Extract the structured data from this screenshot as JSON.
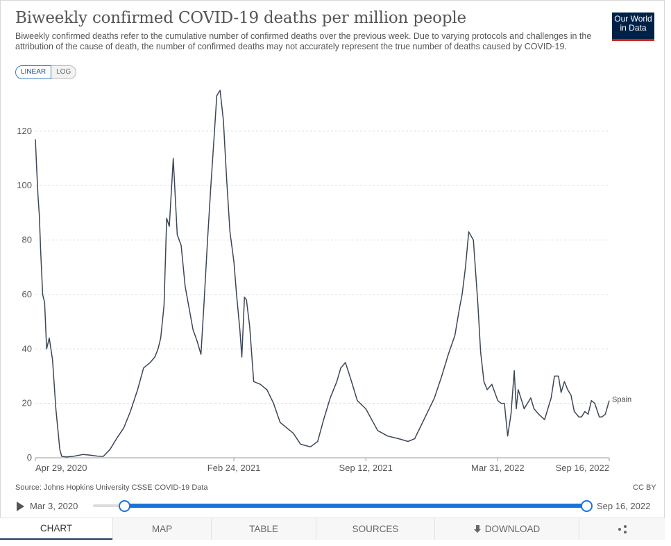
{
  "header": {
    "title": "Biweekly confirmed COVID-19 deaths per million people",
    "subtitle": "Biweekly confirmed deaths refer to the cumulative number of confirmed deaths over the previous week. Due to varying protocols and challenges in the attribution of the cause of death, the number of confirmed deaths may not accurately represent the true number of deaths caused by COVID-19.",
    "logo_line1": "Our World",
    "logo_line2": "in Data"
  },
  "scale_toggle": {
    "linear": "LINEAR",
    "log": "LOG",
    "selected": "LINEAR"
  },
  "chart_data": {
    "type": "line",
    "title": "Biweekly confirmed COVID-19 deaths per million people",
    "xlabel": "",
    "ylabel": "",
    "ylim": [
      0,
      135
    ],
    "yticks": [
      0,
      20,
      40,
      60,
      80,
      100,
      120
    ],
    "xtick_labels": [
      "Apr 29, 2020",
      "Feb 24, 2021",
      "Sep 12, 2021",
      "Mar 31, 2022",
      "Sep 16, 2022"
    ],
    "xtick_dates": [
      "2020-04-29",
      "2021-02-24",
      "2021-09-12",
      "2022-03-31",
      "2022-09-16"
    ],
    "grid": "horizontal dashed",
    "line_color": "#3c4656",
    "series": [
      {
        "name": "Spain",
        "x": [
          "2020-04-29",
          "2020-05-01",
          "2020-05-03",
          "2020-05-05",
          "2020-05-07",
          "2020-05-10",
          "2020-05-13",
          "2020-05-16",
          "2020-05-20",
          "2020-05-25",
          "2020-05-30",
          "2020-06-05",
          "2020-06-08",
          "2020-06-15",
          "2020-06-25",
          "2020-07-10",
          "2020-07-20",
          "2020-08-01",
          "2020-08-10",
          "2020-08-20",
          "2020-08-30",
          "2020-09-10",
          "2020-09-20",
          "2020-10-01",
          "2020-10-10",
          "2020-10-20",
          "2020-10-27",
          "2020-11-01",
          "2020-11-05",
          "2020-11-10",
          "2020-11-14",
          "2020-11-18",
          "2020-11-24",
          "2020-11-30",
          "2020-12-06",
          "2020-12-12",
          "2020-12-18",
          "2020-12-24",
          "2020-12-30",
          "2021-01-05",
          "2021-01-10",
          "2021-01-15",
          "2021-01-20",
          "2021-01-25",
          "2021-01-29",
          "2021-02-03",
          "2021-02-08",
          "2021-02-13",
          "2021-02-18",
          "2021-02-24",
          "2021-02-28",
          "2021-03-05",
          "2021-03-08",
          "2021-03-12",
          "2021-03-15",
          "2021-03-20",
          "2021-03-26",
          "2021-04-05",
          "2021-04-15",
          "2021-04-25",
          "2021-05-05",
          "2021-05-15",
          "2021-05-25",
          "2021-06-05",
          "2021-06-20",
          "2021-07-01",
          "2021-07-10",
          "2021-07-20",
          "2021-07-30",
          "2021-08-05",
          "2021-08-12",
          "2021-08-20",
          "2021-08-30",
          "2021-09-12",
          "2021-09-30",
          "2021-10-15",
          "2021-11-01",
          "2021-11-15",
          "2021-11-25",
          "2021-12-05",
          "2021-12-15",
          "2021-12-25",
          "2022-01-05",
          "2022-01-15",
          "2022-01-25",
          "2022-02-01",
          "2022-02-05",
          "2022-02-10",
          "2022-02-15",
          "2022-02-22",
          "2022-03-01",
          "2022-03-05",
          "2022-03-10",
          "2022-03-15",
          "2022-03-22",
          "2022-03-31",
          "2022-04-05",
          "2022-04-10",
          "2022-04-15",
          "2022-04-20",
          "2022-04-25",
          "2022-04-28",
          "2022-05-01",
          "2022-05-05",
          "2022-05-10",
          "2022-05-15",
          "2022-05-20",
          "2022-05-25",
          "2022-06-01",
          "2022-06-10",
          "2022-06-20",
          "2022-06-25",
          "2022-07-01",
          "2022-07-05",
          "2022-07-10",
          "2022-07-15",
          "2022-07-20",
          "2022-07-25",
          "2022-08-01",
          "2022-08-05",
          "2022-08-10",
          "2022-08-15",
          "2022-08-20",
          "2022-08-25",
          "2022-09-01",
          "2022-09-05",
          "2022-09-10",
          "2022-09-16"
        ],
        "values": [
          117,
          106,
          96,
          89,
          76,
          60,
          57,
          40,
          44,
          36,
          18,
          3,
          0.5,
          0.3,
          0.5,
          1.2,
          1,
          0.6,
          0.5,
          3,
          7,
          11,
          17,
          25,
          33,
          35,
          37,
          40,
          44,
          56,
          88,
          85,
          110,
          82,
          78,
          63,
          55,
          47,
          43,
          38,
          58,
          80,
          100,
          118,
          133,
          135,
          124,
          102,
          83,
          72,
          60,
          47,
          37,
          59,
          58,
          48,
          28,
          27,
          25,
          20,
          13,
          11,
          9,
          5,
          4,
          6,
          14,
          22,
          28,
          33,
          35,
          29,
          21,
          18,
          10,
          8,
          7,
          6,
          7,
          12,
          17,
          22,
          30,
          38,
          45,
          55,
          60,
          70,
          83,
          80,
          56,
          39,
          28,
          25,
          27,
          21,
          20,
          20,
          8,
          16,
          32,
          18,
          25,
          22,
          18,
          20,
          22,
          18,
          16,
          14,
          22,
          30,
          30,
          24,
          28,
          25,
          23,
          17,
          15,
          15,
          17,
          16,
          21,
          20,
          15,
          15,
          16,
          21
        ],
        "end_label": "Spain"
      }
    ]
  },
  "footer": {
    "source": "Source: Johns Hopkins University CSSE COVID-19 Data",
    "license": "CC BY"
  },
  "timeline": {
    "start_label": "Mar 3, 2020",
    "end_label": "Sep 16, 2022",
    "selected_start": "2020-04-29",
    "selected_end": "2022-09-16"
  },
  "tabs": [
    {
      "label": "CHART",
      "active": true
    },
    {
      "label": "MAP",
      "active": false
    },
    {
      "label": "TABLE",
      "active": false
    },
    {
      "label": "SOURCES",
      "active": false
    },
    {
      "label": "DOWNLOAD",
      "active": false
    },
    {
      "label": "",
      "active": false
    }
  ]
}
